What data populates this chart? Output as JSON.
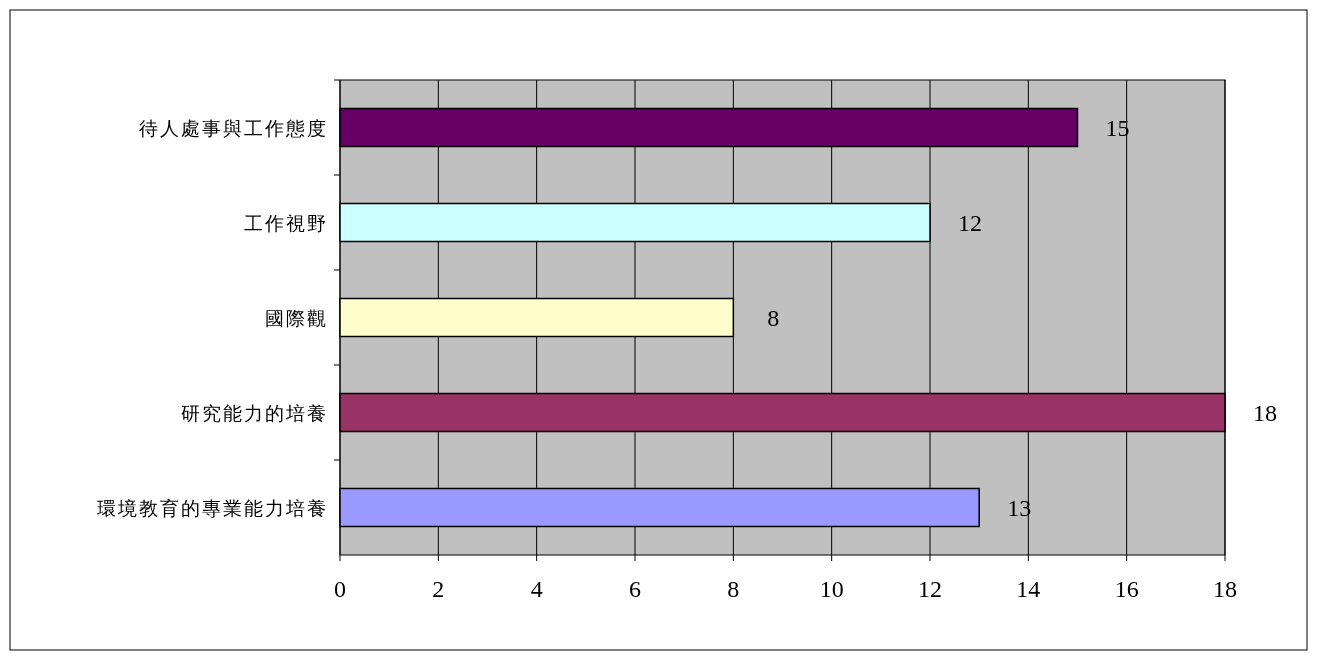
{
  "chart_data": {
    "type": "bar",
    "orientation": "horizontal",
    "categories": [
      "待人處事與工作態度",
      "工作視野",
      "國際觀",
      "研究能力的培養",
      "環境教育的專業能力培養"
    ],
    "values": [
      15,
      12,
      8,
      18,
      13
    ],
    "colors": [
      "#660066",
      "#ccffff",
      "#ffffcc",
      "#993366",
      "#9999ff"
    ],
    "data_labels": true,
    "xlim": [
      0,
      18
    ],
    "xticks": [
      0,
      2,
      4,
      6,
      8,
      10,
      12,
      14,
      16,
      18
    ],
    "grid": "x"
  }
}
